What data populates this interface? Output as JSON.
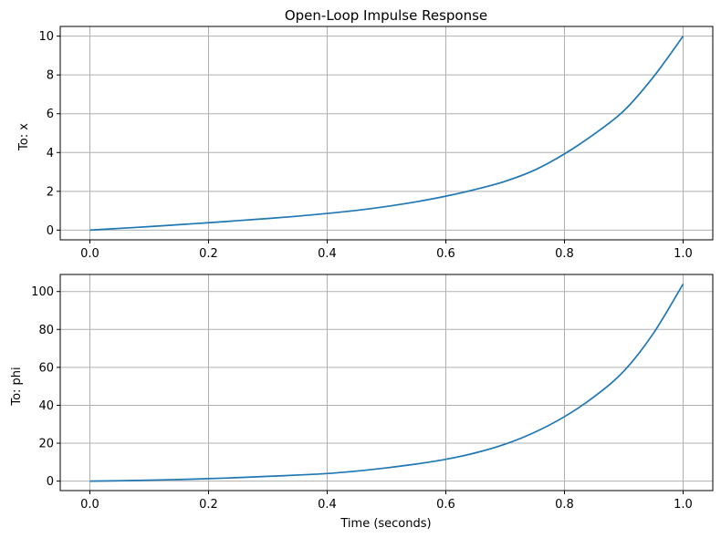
{
  "title": "Open-Loop Impulse Response",
  "xlabel": "Time (seconds)",
  "chart_data": [
    {
      "type": "line",
      "title": "Open-Loop Impulse Response",
      "xlabel": "",
      "ylabel": "To: x",
      "xlim": [
        -0.05,
        1.05
      ],
      "ylim": [
        -0.5,
        10.5
      ],
      "xticks": [
        0.0,
        0.2,
        0.4,
        0.6,
        0.8,
        1.0
      ],
      "xtick_labels": [
        "0.0",
        "0.2",
        "0.4",
        "0.6",
        "0.8",
        "1.0"
      ],
      "yticks": [
        0,
        2,
        4,
        6,
        8,
        10
      ],
      "ytick_labels": [
        "0",
        "2",
        "4",
        "6",
        "8",
        "10"
      ],
      "grid": true,
      "series": [
        {
          "color": "#1f77b4",
          "x": [
            0.0,
            0.05,
            0.1,
            0.15,
            0.2,
            0.25,
            0.3,
            0.35,
            0.4,
            0.45,
            0.5,
            0.55,
            0.6,
            0.65,
            0.7,
            0.75,
            0.8,
            0.85,
            0.9,
            0.95,
            1.0
          ],
          "y": [
            0.0,
            0.09,
            0.18,
            0.28,
            0.38,
            0.49,
            0.6,
            0.72,
            0.86,
            1.02,
            1.22,
            1.46,
            1.75,
            2.1,
            2.52,
            3.1,
            3.93,
            4.95,
            6.15,
            7.9,
            10.0
          ]
        }
      ]
    },
    {
      "type": "line",
      "title": "",
      "xlabel": "Time (seconds)",
      "ylabel": "To: phi",
      "xlim": [
        -0.05,
        1.05
      ],
      "ylim": [
        -5,
        109
      ],
      "xticks": [
        0.0,
        0.2,
        0.4,
        0.6,
        0.8,
        1.0
      ],
      "xtick_labels": [
        "0.0",
        "0.2",
        "0.4",
        "0.6",
        "0.8",
        "1.0"
      ],
      "yticks": [
        0,
        20,
        40,
        60,
        80,
        100
      ],
      "ytick_labels": [
        "0",
        "20",
        "40",
        "60",
        "80",
        "100"
      ],
      "grid": true,
      "series": [
        {
          "color": "#1f77b4",
          "x": [
            0.0,
            0.05,
            0.1,
            0.15,
            0.2,
            0.25,
            0.3,
            0.35,
            0.4,
            0.45,
            0.5,
            0.55,
            0.6,
            0.65,
            0.7,
            0.75,
            0.8,
            0.85,
            0.9,
            0.95,
            1.0
          ],
          "y": [
            0.0,
            0.2,
            0.5,
            0.85,
            1.3,
            1.85,
            2.5,
            3.2,
            4.0,
            5.3,
            7.0,
            9.0,
            11.5,
            14.9,
            19.5,
            25.8,
            34.0,
            44.5,
            58.0,
            78.0,
            104.0
          ]
        }
      ]
    }
  ]
}
